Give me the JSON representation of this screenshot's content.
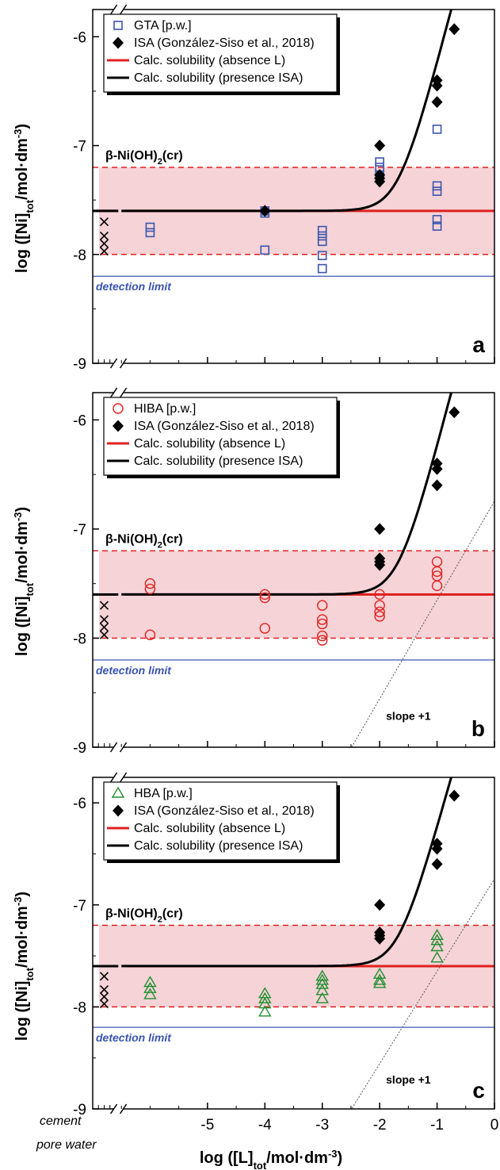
{
  "figure": {
    "x_axis_label": "log ([L]tot/mol·dm-3)",
    "x_label_parts": {
      "pre": "log ([L]",
      "sub": "tot",
      "mid": "/mol·dm",
      "sup": "-3",
      "post": ")"
    },
    "y_axis_label": "log ([Ni]tot/mol·dm-3)",
    "y_label_parts": {
      "pre": "log ([Ni]",
      "sub": "tot",
      "mid": "/mol·dm",
      "sup": "-3",
      "post": ")"
    },
    "cement_label_1": "cement",
    "cement_label_2": "pore water",
    "phase_label": {
      "pre": "β-Ni(OH)",
      "sub": "2",
      "post": "(cr)"
    },
    "detection_label": "detection limit",
    "slope_label": "slope +1",
    "colors": {
      "blue": "#3a55b0",
      "red": "#e0201f",
      "green": "#1f9030",
      "band": "#f5d3d6",
      "black": "#000000"
    }
  },
  "chart_data": [
    {
      "type": "scatter",
      "panel_label": "a",
      "xlim": [
        -7.0,
        0
      ],
      "ylim": [
        -9,
        -5.75
      ],
      "x_ticks": [
        -5,
        -4,
        -3,
        -2,
        -1,
        0
      ],
      "y_ticks": [
        -6,
        -7,
        -8,
        -9
      ],
      "legend_position": "top-left",
      "solubility_band": [
        -8.0,
        -7.2
      ],
      "solubility_level": -7.6,
      "detection_limit": -8.2,
      "series": [
        {
          "name": "GTA [p.w.]",
          "marker": "square-open",
          "color": "#3a55b0",
          "points": [
            [
              -6.0,
              -7.75
            ],
            [
              -6.0,
              -7.8
            ],
            [
              -4.0,
              -7.6
            ],
            [
              -4.0,
              -7.62
            ],
            [
              -4.0,
              -7.96
            ],
            [
              -3.0,
              -7.78
            ],
            [
              -3.0,
              -7.83
            ],
            [
              -3.0,
              -7.88
            ],
            [
              -3.0,
              -8.01
            ],
            [
              -3.0,
              -8.13
            ],
            [
              -2.0,
              -7.15
            ],
            [
              -2.0,
              -7.2
            ],
            [
              -2.0,
              -7.27
            ],
            [
              -1.0,
              -6.85
            ],
            [
              -1.0,
              -7.37
            ],
            [
              -1.0,
              -7.42
            ],
            [
              -1.0,
              -7.68
            ],
            [
              -1.0,
              -7.74
            ]
          ]
        },
        {
          "name": "ISA (González-Siso et al., 2018)",
          "marker": "diamond-filled",
          "color": "#000000",
          "points": [
            [
              -4.0,
              -7.6
            ],
            [
              -2.0,
              -7.0
            ],
            [
              -2.0,
              -7.27
            ],
            [
              -2.0,
              -7.3
            ],
            [
              -2.0,
              -7.33
            ],
            [
              -1.0,
              -6.4
            ],
            [
              -1.0,
              -6.45
            ],
            [
              -1.0,
              -6.6
            ],
            [
              -0.7,
              -5.93
            ]
          ]
        },
        {
          "name": "cement pore water",
          "marker": "x",
          "color": "#000000",
          "points": [
            [
              -6.8,
              -7.7
            ],
            [
              -6.8,
              -7.83
            ],
            [
              -6.8,
              -7.9
            ],
            [
              -6.8,
              -7.97
            ]
          ]
        }
      ],
      "lines": [
        {
          "name": "Calc. solubility (absence L)",
          "color": "#e0201f"
        },
        {
          "name": "Calc. solubility (presence ISA)",
          "color": "#000000"
        }
      ]
    },
    {
      "type": "scatter",
      "panel_label": "b",
      "xlim": [
        -7.0,
        0
      ],
      "ylim": [
        -9,
        -5.75
      ],
      "x_ticks": [
        -5,
        -4,
        -3,
        -2,
        -1,
        0
      ],
      "y_ticks": [
        -6,
        -7,
        -8,
        -9
      ],
      "legend_position": "top-left",
      "solubility_band": [
        -8.0,
        -7.2
      ],
      "solubility_level": -7.6,
      "detection_limit": -8.2,
      "slope_line": true,
      "series": [
        {
          "name": "HIBA [p.w.]",
          "marker": "circle-open",
          "color": "#e0201f",
          "points": [
            [
              -6.0,
              -7.5
            ],
            [
              -6.0,
              -7.55
            ],
            [
              -6.0,
              -7.97
            ],
            [
              -4.0,
              -7.6
            ],
            [
              -4.0,
              -7.63
            ],
            [
              -4.0,
              -7.91
            ],
            [
              -3.0,
              -7.7
            ],
            [
              -3.0,
              -7.83
            ],
            [
              -3.0,
              -7.87
            ],
            [
              -3.0,
              -7.98
            ],
            [
              -3.0,
              -8.02
            ],
            [
              -2.0,
              -7.6
            ],
            [
              -2.0,
              -7.7
            ],
            [
              -2.0,
              -7.76
            ],
            [
              -2.0,
              -7.8
            ],
            [
              -1.0,
              -7.3
            ],
            [
              -1.0,
              -7.39
            ],
            [
              -1.0,
              -7.43
            ],
            [
              -1.0,
              -7.52
            ]
          ]
        },
        {
          "name": "ISA (González-Siso et al., 2018)",
          "marker": "diamond-filled",
          "color": "#000000",
          "points": [
            [
              -2.0,
              -7.0
            ],
            [
              -2.0,
              -7.27
            ],
            [
              -2.0,
              -7.3
            ],
            [
              -2.0,
              -7.33
            ],
            [
              -1.0,
              -6.4
            ],
            [
              -1.0,
              -6.45
            ],
            [
              -1.0,
              -6.6
            ],
            [
              -0.7,
              -5.93
            ]
          ]
        },
        {
          "name": "cement pore water",
          "marker": "x",
          "color": "#000000",
          "points": [
            [
              -6.8,
              -7.7
            ],
            [
              -6.8,
              -7.83
            ],
            [
              -6.8,
              -7.9
            ],
            [
              -6.8,
              -7.97
            ]
          ]
        }
      ],
      "lines": [
        {
          "name": "Calc. solubility (absence L)",
          "color": "#e0201f"
        },
        {
          "name": "Calc. solubility (presence ISA)",
          "color": "#000000"
        }
      ]
    },
    {
      "type": "scatter",
      "panel_label": "c",
      "xlim": [
        -7.0,
        0
      ],
      "ylim": [
        -9,
        -5.75
      ],
      "x_ticks": [
        -5,
        -4,
        -3,
        -2,
        -1,
        0
      ],
      "y_ticks": [
        -6,
        -7,
        -8,
        -9
      ],
      "legend_position": "top-left",
      "solubility_band": [
        -8.0,
        -7.2
      ],
      "solubility_level": -7.6,
      "detection_limit": -8.2,
      "slope_line": true,
      "series": [
        {
          "name": "HBA [p.w.]",
          "marker": "triangle-open",
          "color": "#1f9030",
          "points": [
            [
              -6.0,
              -7.76
            ],
            [
              -6.0,
              -7.82
            ],
            [
              -6.0,
              -7.88
            ],
            [
              -4.0,
              -7.87
            ],
            [
              -4.0,
              -7.92
            ],
            [
              -4.0,
              -7.97
            ],
            [
              -4.0,
              -8.05
            ],
            [
              -3.0,
              -7.7
            ],
            [
              -3.0,
              -7.74
            ],
            [
              -3.0,
              -7.78
            ],
            [
              -3.0,
              -7.84
            ],
            [
              -3.0,
              -7.92
            ],
            [
              -2.0,
              -7.68
            ],
            [
              -2.0,
              -7.74
            ],
            [
              -2.0,
              -7.77
            ],
            [
              -1.0,
              -7.3
            ],
            [
              -1.0,
              -7.35
            ],
            [
              -1.0,
              -7.41
            ],
            [
              -1.0,
              -7.52
            ]
          ]
        },
        {
          "name": "ISA (González-Siso et al., 2018)",
          "marker": "diamond-filled",
          "color": "#000000",
          "points": [
            [
              -2.0,
              -7.0
            ],
            [
              -2.0,
              -7.27
            ],
            [
              -2.0,
              -7.3
            ],
            [
              -2.0,
              -7.33
            ],
            [
              -1.0,
              -6.4
            ],
            [
              -1.0,
              -6.45
            ],
            [
              -1.0,
              -6.6
            ],
            [
              -0.7,
              -5.93
            ]
          ]
        },
        {
          "name": "cement pore water",
          "marker": "x",
          "color": "#000000",
          "points": [
            [
              -6.8,
              -7.7
            ],
            [
              -6.8,
              -7.83
            ],
            [
              -6.8,
              -7.9
            ],
            [
              -6.8,
              -7.97
            ]
          ]
        }
      ],
      "lines": [
        {
          "name": "Calc. solubility (absence L)",
          "color": "#e0201f"
        },
        {
          "name": "Calc. solubility (presence ISA)",
          "color": "#000000"
        }
      ]
    }
  ]
}
